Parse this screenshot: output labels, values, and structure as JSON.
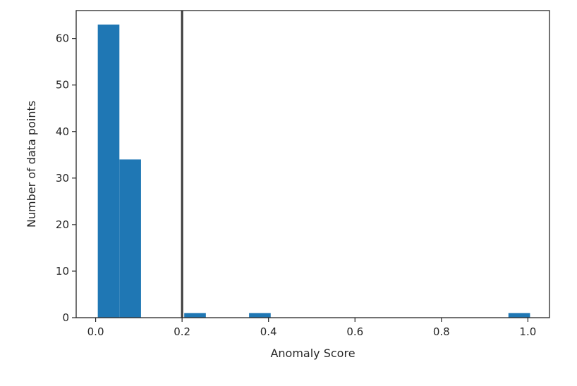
{
  "chart_data": {
    "type": "bar",
    "title": "",
    "xlabel": "Anomaly Score",
    "ylabel": "Number of data points",
    "xlim": [
      -0.045,
      1.05
    ],
    "ylim": [
      0,
      66
    ],
    "x_ticks": [
      "0.0",
      "0.2",
      "0.4",
      "0.6",
      "0.8",
      "1.0"
    ],
    "y_ticks": [
      "0",
      "10",
      "20",
      "30",
      "40",
      "50",
      "60"
    ],
    "bins": [
      {
        "start": 0.005,
        "end": 0.055,
        "value": 63
      },
      {
        "start": 0.055,
        "end": 0.105,
        "value": 34
      },
      {
        "start": 0.205,
        "end": 0.255,
        "value": 1
      },
      {
        "start": 0.355,
        "end": 0.405,
        "value": 1
      },
      {
        "start": 0.955,
        "end": 1.005,
        "value": 1
      }
    ],
    "threshold_line": {
      "x": 0.2
    },
    "bar_color": "#1f77b4",
    "line_color": "#3a3a3a",
    "grid": false,
    "legend": "none"
  }
}
